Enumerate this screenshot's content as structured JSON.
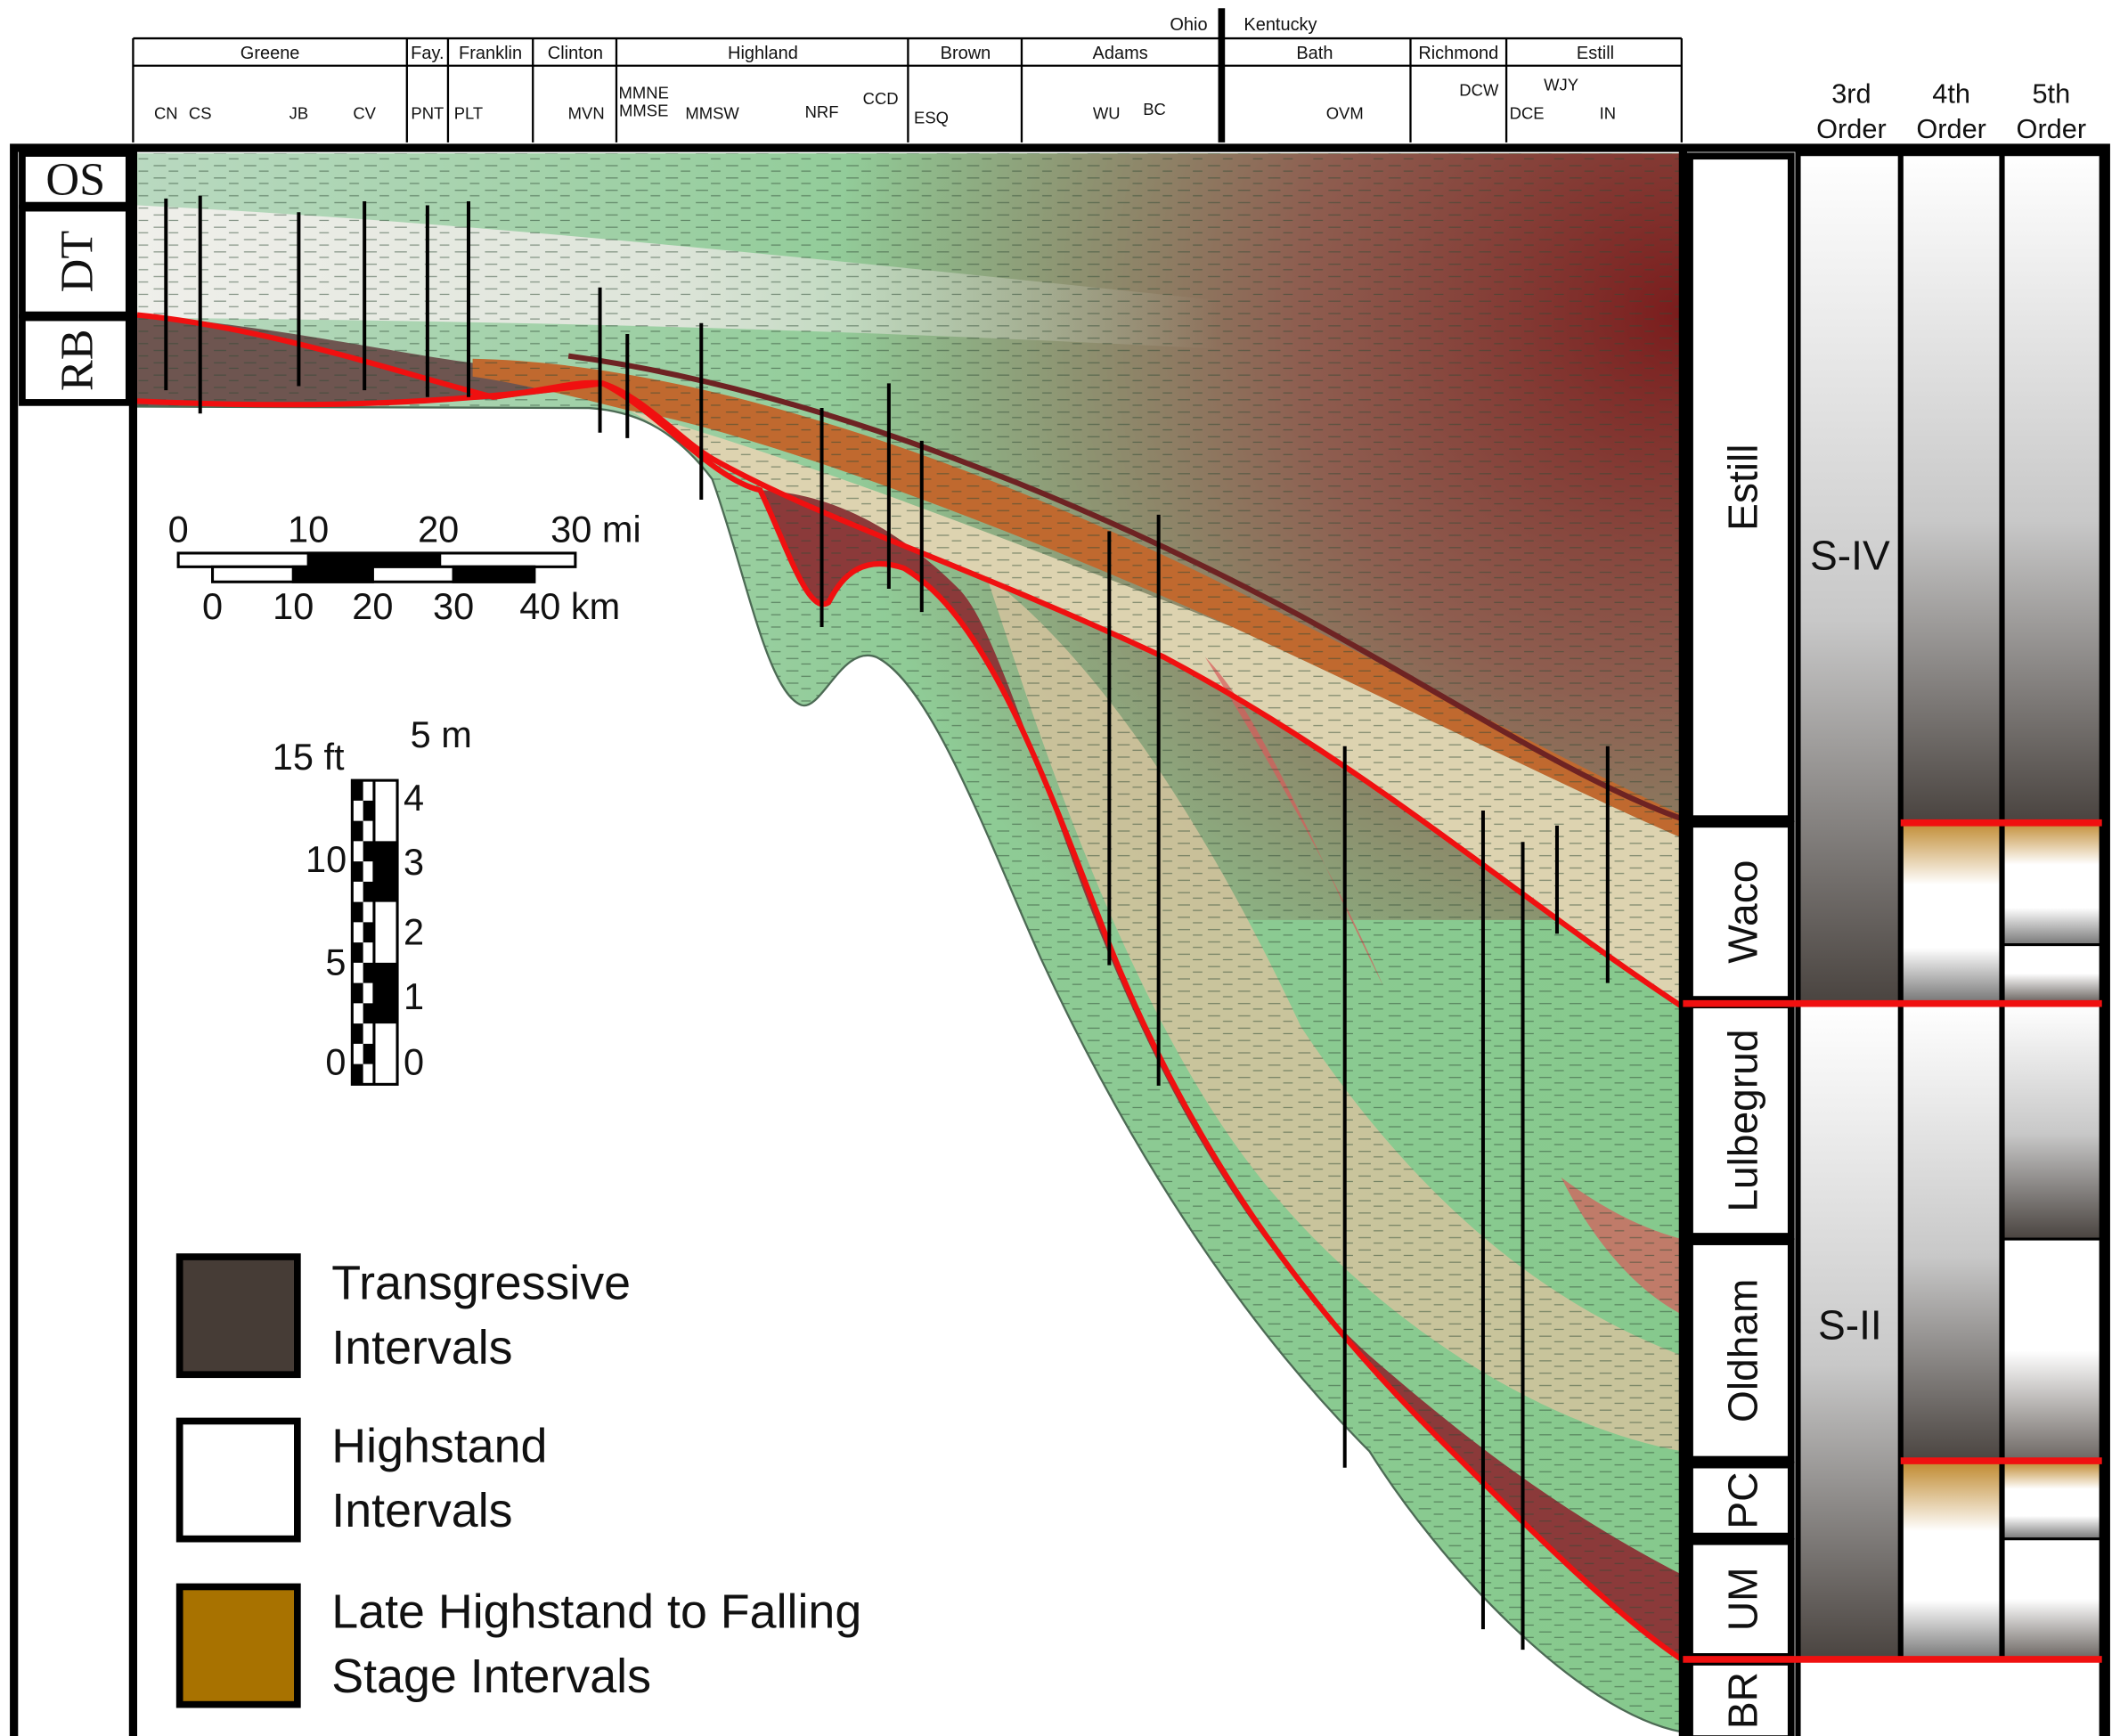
{
  "header": {
    "states": [
      "Ohio",
      "Kentucky"
    ],
    "counties": [
      "Greene",
      "Fay.",
      "Franklin",
      "Clinton",
      "Highland",
      "Brown",
      "Adams",
      "Bath",
      "Richmond",
      "Estill"
    ],
    "wells": [
      "CN",
      "CS",
      "JB",
      "CV",
      "PNT",
      "PLT",
      "MVN",
      "MMNE",
      "MMSE",
      "MMSW",
      "NRF",
      "CCD",
      "ESQ",
      "WU",
      "BC",
      "OVM",
      "DCW",
      "DCE",
      "WJY",
      "IN"
    ]
  },
  "units_left": [
    "OS",
    "DT",
    "RB"
  ],
  "formations": [
    "Estill",
    "Waco",
    "Lulbegrud",
    "Oldham",
    "PC",
    "UM",
    "BR"
  ],
  "orders": [
    {
      "rank": "3rd",
      "word": "Order"
    },
    {
      "rank": "4th",
      "word": "Order"
    },
    {
      "rank": "5th",
      "word": "Order"
    }
  ],
  "sequences": [
    "S-IV",
    "S-II"
  ],
  "scale": {
    "miles": [
      "0",
      "10",
      "20",
      "30 mi"
    ],
    "km": [
      "0",
      "10",
      "20",
      "30",
      "40 km"
    ],
    "feet": [
      "15 ft",
      "10",
      "5",
      "0"
    ],
    "meters": [
      "5 m",
      "4",
      "3",
      "2",
      "1",
      "0"
    ]
  },
  "legend": [
    {
      "lines": [
        "Transgressive",
        "Intervals"
      ]
    },
    {
      "lines": [
        "Highstand",
        "Intervals"
      ]
    },
    {
      "lines": [
        "Late Highstand to Falling",
        "Stage Intervals"
      ]
    }
  ]
}
